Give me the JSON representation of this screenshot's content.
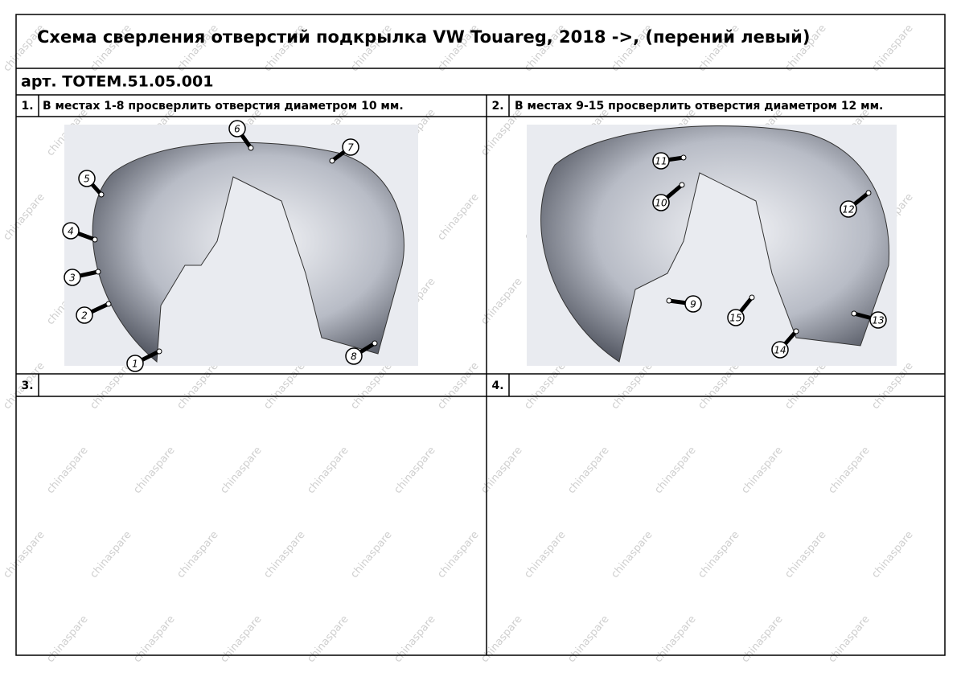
{
  "header": {
    "title": "Схема сверления отверстий подкрылка VW Touareg, 2018  ->, (перений левый)",
    "article": "арт. TOTEM.51.05.001"
  },
  "panels": [
    {
      "number": "1.",
      "text": "В местах 1-8 просверлить отверстия диаметром 10 мм.",
      "callouts": [
        "1",
        "2",
        "3",
        "4",
        "5",
        "6",
        "7",
        "8"
      ]
    },
    {
      "number": "2.",
      "text": "В местах 9-15 просверлить отверстия диаметром 12 мм.",
      "callouts": [
        "9",
        "10",
        "11",
        "12",
        "13",
        "14",
        "15"
      ]
    },
    {
      "number": "3."
    },
    {
      "number": "4."
    }
  ],
  "watermark": "chinaspare"
}
